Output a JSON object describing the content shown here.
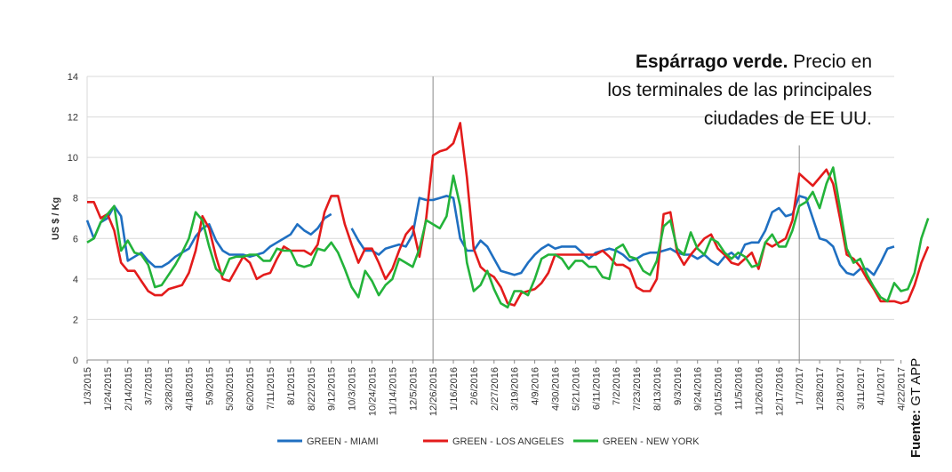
{
  "chart_data": {
    "type": "line",
    "title_bold": "Espárrago verde.",
    "title_lines": [
      "Precio en",
      "los terminales de las principales",
      "ciudades de EE UU."
    ],
    "ylabel": "US $ / Kg",
    "xlabel": "",
    "ylim": [
      0,
      14
    ],
    "yticks": [
      0,
      2,
      4,
      6,
      8,
      10,
      12,
      14
    ],
    "grid": true,
    "legend_position": "bottom",
    "xtick_labels": [
      "1/3/2015",
      "1/24/2015",
      "2/14/2015",
      "3/7/2015",
      "3/28/2015",
      "4/18/2015",
      "5/9/2015",
      "5/30/2015",
      "6/20/2015",
      "7/11/2015",
      "8/1/2015",
      "8/22/2015",
      "9/12/2015",
      "10/3/2015",
      "10/24/2015",
      "11/14/2015",
      "12/5/2015",
      "12/26/2015",
      "1/16/2016",
      "2/6/2016",
      "2/27/2016",
      "3/19/2016",
      "4/9/2016",
      "4/30/2016",
      "5/21/2016",
      "6/11/2016",
      "7/2/2016",
      "7/23/2016",
      "8/13/2016",
      "9/3/2016",
      "9/24/2016",
      "10/15/2016",
      "11/5/2016",
      "11/26/2016",
      "12/17/2016",
      "1/7/2017",
      "1/28/2017",
      "2/18/2017",
      "3/11/2017",
      "4/1/2017",
      "4/22/2017"
    ],
    "vertical_markers": [
      "12/26/2015",
      "1/7/2017"
    ],
    "series": [
      {
        "name": "GREEN - MIAMI",
        "color": "#1f6fc1",
        "values": [
          6.9,
          6.0,
          6.8,
          7.0,
          7.6,
          7.1,
          4.9,
          5.1,
          5.3,
          4.9,
          4.6,
          4.6,
          4.8,
          5.1,
          5.3,
          5.5,
          6.1,
          6.5,
          6.7,
          5.9,
          5.4,
          5.2,
          5.2,
          5.2,
          5.1,
          5.2,
          5.3,
          5.6,
          5.8,
          6.0,
          6.2,
          6.7,
          6.4,
          6.2,
          6.5,
          7.0,
          7.2,
          null,
          null,
          6.5,
          5.9,
          5.4,
          5.4,
          5.2,
          5.5,
          5.6,
          5.7,
          5.6,
          6.2,
          8.0,
          7.9,
          7.9,
          8.0,
          8.1,
          8.0,
          6.0,
          5.4,
          5.4,
          5.9,
          5.6,
          5.0,
          4.4,
          4.3,
          4.2,
          4.3,
          4.8,
          5.2,
          5.5,
          5.7,
          5.5,
          5.6,
          5.6,
          5.6,
          5.3,
          5.0,
          5.3,
          5.4,
          5.5,
          5.4,
          5.2,
          4.9,
          5.0,
          5.2,
          5.3,
          5.3,
          5.4,
          5.5,
          5.3,
          5.2,
          5.2,
          5.0,
          5.2,
          4.9,
          4.7,
          5.1,
          5.3,
          5.0,
          5.7,
          5.8,
          5.8,
          6.4,
          7.3,
          7.5,
          7.1,
          7.2,
          8.1,
          8.0,
          7.0,
          6.0,
          5.9,
          5.6,
          4.7,
          4.3,
          4.2,
          4.5,
          4.5,
          4.2,
          4.8,
          5.5,
          5.6
        ]
      },
      {
        "name": "GREEN - LOS ANGELES",
        "color": "#e31b1b",
        "values": [
          7.8,
          7.8,
          7.0,
          7.2,
          6.4,
          4.8,
          4.4,
          4.4,
          3.9,
          3.4,
          3.2,
          3.2,
          3.5,
          3.6,
          3.7,
          4.3,
          5.4,
          7.1,
          6.5,
          5.1,
          4.0,
          3.9,
          4.5,
          5.1,
          4.8,
          4.0,
          4.2,
          4.3,
          5.0,
          5.6,
          5.4,
          5.4,
          5.4,
          5.2,
          5.7,
          7.3,
          8.1,
          8.1,
          6.7,
          5.7,
          4.8,
          5.5,
          5.5,
          4.8,
          4.0,
          4.5,
          5.4,
          6.2,
          6.6,
          5.1,
          7.0,
          10.1,
          10.3,
          10.4,
          10.7,
          11.7,
          9.0,
          5.5,
          4.6,
          4.3,
          4.1,
          3.6,
          2.8,
          2.7,
          3.3,
          3.4,
          3.5,
          3.8,
          4.3,
          5.2,
          5.2,
          5.2,
          5.2,
          5.2,
          5.2,
          5.2,
          5.4,
          5.1,
          4.7,
          4.7,
          4.5,
          3.6,
          3.4,
          3.4,
          4.0,
          7.2,
          7.3,
          5.3,
          4.7,
          5.2,
          5.6,
          6.0,
          6.2,
          5.5,
          5.2,
          4.8,
          4.7,
          5.0,
          5.3,
          4.5,
          5.8,
          5.6,
          5.8,
          6.0,
          6.9,
          9.2,
          8.9,
          8.6,
          9.0,
          9.4,
          8.7,
          7.0,
          5.2,
          5.0,
          4.6,
          4.0,
          3.5,
          2.9,
          2.9,
          2.9,
          2.8,
          2.9,
          3.7,
          4.8,
          5.6
        ]
      },
      {
        "name": "GREEN - NEW YORK",
        "color": "#23b33a",
        "values": [
          5.8,
          6.0,
          6.8,
          7.2,
          7.6,
          5.4,
          5.9,
          5.3,
          5.2,
          4.7,
          3.6,
          3.7,
          4.2,
          4.7,
          5.3,
          6.0,
          7.3,
          6.9,
          5.6,
          4.5,
          4.2,
          5.0,
          5.1,
          5.1,
          5.2,
          5.2,
          4.9,
          4.9,
          5.5,
          5.4,
          5.4,
          4.7,
          4.6,
          4.7,
          5.5,
          5.4,
          5.8,
          5.3,
          4.5,
          3.6,
          3.1,
          4.4,
          3.9,
          3.2,
          3.7,
          4.0,
          5.0,
          4.8,
          4.6,
          5.5,
          6.9,
          6.7,
          6.5,
          7.1,
          9.1,
          7.6,
          4.8,
          3.4,
          3.7,
          4.4,
          3.5,
          2.8,
          2.6,
          3.4,
          3.4,
          3.2,
          4.0,
          5.0,
          5.2,
          5.2,
          5.0,
          4.5,
          4.9,
          4.9,
          4.6,
          4.6,
          4.1,
          4.0,
          5.5,
          5.7,
          5.1,
          5.0,
          4.4,
          4.2,
          4.9,
          6.6,
          6.9,
          5.5,
          5.2,
          6.3,
          5.5,
          5.2,
          6.0,
          5.8,
          5.3,
          5.0,
          5.3,
          5.1,
          4.6,
          4.7,
          5.8,
          6.2,
          5.6,
          5.6,
          6.4,
          7.6,
          7.8,
          8.3,
          7.5,
          8.7,
          9.5,
          7.5,
          5.5,
          4.8,
          5.0,
          4.2,
          3.6,
          3.1,
          2.9,
          3.8,
          3.4,
          3.5,
          4.3,
          6.0,
          7.0
        ]
      }
    ]
  },
  "source": {
    "label": "Fuente:",
    "value": "GT APP"
  }
}
